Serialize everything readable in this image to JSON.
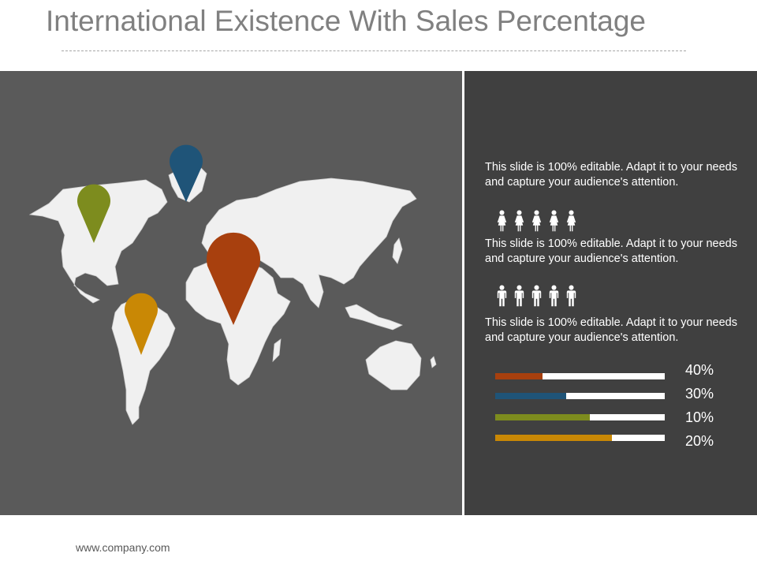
{
  "slide": {
    "title": "International Existence With Sales Percentage",
    "footer": "www.company.com"
  },
  "colors": {
    "olive": "#7d8c1e",
    "blue": "#1f5478",
    "rust": "#a8400e",
    "gold": "#c98805",
    "map_bg": "#5a5a5a",
    "panel_bg": "#404040",
    "land": "#f0f0f0"
  },
  "map": {
    "pins": [
      {
        "name": "North America",
        "color": "olive"
      },
      {
        "name": "Greenland",
        "color": "blue"
      },
      {
        "name": "Africa",
        "color": "rust"
      },
      {
        "name": "South America",
        "color": "gold"
      }
    ]
  },
  "info": {
    "blocks": [
      {
        "text": "This slide is 100% editable. Adapt it to your needs and capture your audience's attention."
      },
      {
        "text": "This slide is 100% editable. Adapt it to your needs and capture your audience's attention."
      },
      {
        "text": "This slide is 100% editable. Adapt it to your needs and capture your audience's attention."
      }
    ],
    "people_rows": [
      {
        "icon": "female-person-icon",
        "count": 5
      },
      {
        "icon": "male-person-icon",
        "count": 5
      }
    ],
    "bars": [
      {
        "label": "40%",
        "fill": 0.28,
        "color": "#a8400e"
      },
      {
        "label": "30%",
        "fill": 0.42,
        "color": "#1f5478"
      },
      {
        "label": "10%",
        "fill": 0.56,
        "color": "#7d8c1e"
      },
      {
        "label": "20%",
        "fill": 0.69,
        "color": "#c98805"
      }
    ]
  }
}
